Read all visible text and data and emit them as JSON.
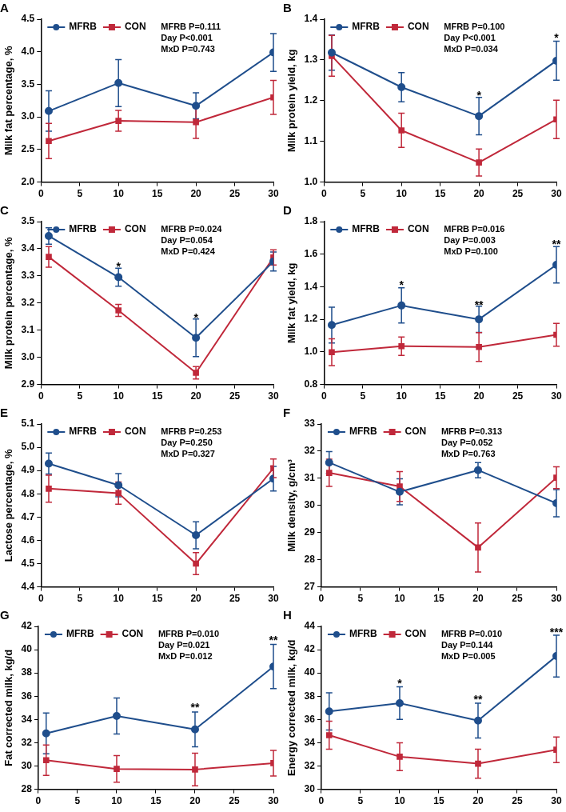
{
  "chart_data": [
    {
      "type": "line",
      "title": "A",
      "ylabel": "Milk fat percentage, %",
      "x": [
        1,
        10,
        20,
        30
      ],
      "xlim": [
        0,
        30
      ],
      "xticks": [
        0,
        5,
        10,
        15,
        20,
        25,
        30
      ],
      "ylim": [
        2,
        4.5
      ],
      "yticks": [
        {
          "value": 2,
          "label": "2.0"
        },
        2.5,
        {
          "value": 3,
          "label": "3.0"
        },
        3.5,
        {
          "value": 4,
          "label": "4.0"
        },
        4.5
      ],
      "grid": false,
      "legend": "top left",
      "line_style": "solid",
      "series": [
        {
          "name": "MFRB",
          "color": "#1f4e8c",
          "marker": "circle",
          "values": [
            3.09,
            3.52,
            3.17,
            3.99
          ],
          "errors": [
            0.31,
            0.36,
            0.2,
            0.29
          ]
        },
        {
          "name": "CON",
          "color": "#c0283a",
          "marker": "square",
          "values": [
            2.63,
            2.94,
            2.92,
            3.3
          ],
          "errors": [
            0.27,
            0.16,
            0.25,
            0.26
          ]
        }
      ],
      "annotations": [
        "MFRB P=0.111",
        "Day P<0.001",
        "MxD P=0.743"
      ]
    },
    {
      "type": "line",
      "title": "B",
      "ylabel": "Milk protein yield, kg",
      "x": [
        1,
        10,
        20,
        30
      ],
      "xlim": [
        0,
        30
      ],
      "xticks": [
        0,
        5,
        10,
        15,
        20,
        25,
        30
      ],
      "ylim": [
        1.0,
        1.4
      ],
      "yticks": [
        {
          "value": 1,
          "label": "1.0"
        },
        1.1,
        1.2,
        1.3,
        1.4
      ],
      "grid": false,
      "legend": "top left",
      "line_style": "solid",
      "series": [
        {
          "name": "MFRB",
          "color": "#1f4e8c",
          "marker": "circle",
          "values": [
            1.318,
            1.233,
            1.162,
            1.298
          ],
          "errors": [
            0.043,
            0.036,
            0.046,
            0.048
          ]
        },
        {
          "name": "CON",
          "color": "#c0283a",
          "marker": "square",
          "values": [
            1.31,
            1.127,
            1.048,
            1.154
          ],
          "errors": [
            0.05,
            0.042,
            0.033,
            0.047
          ]
        }
      ],
      "annotations": [
        "MFRB P=0.100",
        "Day P<0.001",
        "MxD P=0.034",
        {
          "text": "*",
          "x": 20,
          "y": 1.21
        },
        {
          "text": "*",
          "x": 30,
          "y": 1.35
        }
      ]
    },
    {
      "type": "line",
      "title": "C",
      "ylabel": "Milk protein percentage, %",
      "x": [
        1,
        10,
        20,
        30
      ],
      "xlim": [
        0,
        30
      ],
      "xticks": [
        0,
        5,
        10,
        15,
        20,
        25,
        30
      ],
      "ylim": [
        2.9,
        3.5
      ],
      "yticks": [
        2.9,
        {
          "value": 3,
          "label": "3.0"
        },
        3.1,
        3.2,
        3.3,
        3.4,
        3.5
      ],
      "grid": false,
      "legend": "top left",
      "line_style": "solid",
      "series": [
        {
          "name": "MFRB",
          "color": "#1f4e8c",
          "marker": "circle",
          "values": [
            3.447,
            3.295,
            3.072,
            3.353
          ],
          "errors": [
            0.03,
            0.033,
            0.069,
            0.035
          ]
        },
        {
          "name": "CON",
          "color": "#c0283a",
          "marker": "square",
          "values": [
            3.37,
            3.173,
            2.943,
            3.368
          ],
          "errors": [
            0.038,
            0.022,
            0.023,
            0.028
          ]
        }
      ],
      "annotations": [
        "MFRB P=0.024",
        "Day P=0.054",
        "MxD P=0.424",
        {
          "text": "*",
          "x": 10,
          "y": 3.33
        },
        {
          "text": "*",
          "x": 20,
          "y": 3.14
        }
      ]
    },
    {
      "type": "line",
      "title": "D",
      "ylabel": "Milk fat yield, kg",
      "x": [
        1,
        10,
        20,
        30
      ],
      "xlim": [
        0,
        30
      ],
      "xticks": [
        0,
        5,
        10,
        15,
        20,
        25,
        30
      ],
      "ylim": [
        0.8,
        1.8
      ],
      "yticks": [
        0.8,
        {
          "value": 1,
          "label": "1.0"
        },
        1.2,
        1.4,
        1.6,
        1.8
      ],
      "grid": false,
      "legend": "top left",
      "line_style": "solid",
      "series": [
        {
          "name": "MFRB",
          "color": "#1f4e8c",
          "marker": "circle",
          "values": [
            1.165,
            1.285,
            1.2,
            1.535
          ],
          "errors": [
            0.11,
            0.108,
            0.08,
            0.112
          ]
        },
        {
          "name": "CON",
          "color": "#c0283a",
          "marker": "square",
          "values": [
            0.998,
            1.035,
            1.03,
            1.105
          ],
          "errors": [
            0.082,
            0.057,
            0.088,
            0.07
          ]
        }
      ],
      "annotations": [
        "MFRB P=0.016",
        "Day P=0.003",
        "MxD P=0.100",
        {
          "text": "*",
          "x": 10,
          "y": 1.4
        },
        {
          "text": "**",
          "x": 20,
          "y": 1.28
        },
        {
          "text": "**",
          "x": 30,
          "y": 1.65
        }
      ]
    },
    {
      "type": "line",
      "title": "E",
      "ylabel": "Lactose percentage, %",
      "x": [
        1,
        10,
        20,
        30
      ],
      "xlim": [
        0,
        30
      ],
      "xticks": [
        0,
        5,
        10,
        15,
        20,
        25,
        30
      ],
      "ylim": [
        4.4,
        5.1
      ],
      "yticks": [
        4.4,
        4.5,
        4.6,
        4.7,
        4.8,
        4.9,
        {
          "value": 5,
          "label": "5.0"
        },
        5.1
      ],
      "grid": false,
      "legend": "top left",
      "line_style": "solid",
      "series": [
        {
          "name": "MFRB",
          "color": "#1f4e8c",
          "marker": "circle",
          "values": [
            4.93,
            4.837,
            4.622,
            4.865
          ],
          "errors": [
            0.045,
            0.05,
            0.058,
            0.053
          ]
        },
        {
          "name": "CON",
          "color": "#c0283a",
          "marker": "square",
          "values": [
            4.822,
            4.803,
            4.5,
            4.91
          ],
          "errors": [
            0.058,
            0.048,
            0.047,
            0.04
          ]
        }
      ],
      "annotations": [
        "MFRB P=0.253",
        "Day P=0.250",
        "MxD P=0.327"
      ]
    },
    {
      "type": "line",
      "title": "F",
      "ylabel": "Milk density, g/cm³",
      "x": [
        1,
        10,
        20,
        30
      ],
      "xlim": [
        0,
        30
      ],
      "xticks": [
        0,
        5,
        10,
        15,
        20,
        25,
        30
      ],
      "ylim": [
        27,
        33
      ],
      "yticks": [
        27,
        28,
        29,
        30,
        31,
        32,
        33
      ],
      "grid": false,
      "legend": "top left",
      "line_style": "solid",
      "series": [
        {
          "name": "MFRB",
          "color": "#1f4e8c",
          "marker": "circle",
          "values": [
            31.58,
            30.5,
            31.3,
            30.08
          ],
          "errors": [
            0.4,
            0.48,
            0.28,
            0.5
          ]
        },
        {
          "name": "CON",
          "color": "#c0283a",
          "marker": "square",
          "values": [
            31.2,
            30.7,
            28.45,
            31.02
          ],
          "errors": [
            0.5,
            0.55,
            0.9,
            0.4
          ]
        }
      ],
      "annotations": [
        "MFRB P=0.313",
        "Day P=0.052",
        "MxD P=0.763"
      ]
    },
    {
      "type": "line",
      "title": "G",
      "ylabel": "Fat corrected milk, kg/d",
      "x": [
        1,
        10,
        20,
        30
      ],
      "xlim": [
        0,
        30
      ],
      "xticks": [
        0,
        5,
        10,
        15,
        20,
        25,
        30
      ],
      "ylim": [
        28,
        42
      ],
      "yticks": [
        28,
        30,
        32,
        34,
        36,
        38,
        40,
        42
      ],
      "grid": false,
      "legend": "top left",
      "line_style": "solid",
      "series": [
        {
          "name": "MFRB",
          "color": "#1f4e8c",
          "marker": "circle",
          "values": [
            32.8,
            34.3,
            33.15,
            38.55
          ],
          "errors": [
            1.75,
            1.55,
            1.5,
            1.9
          ]
        },
        {
          "name": "CON",
          "color": "#c0283a",
          "marker": "square",
          "values": [
            30.5,
            29.75,
            29.7,
            30.25
          ],
          "errors": [
            1.3,
            1.15,
            1.4,
            1.1
          ]
        }
      ],
      "annotations": [
        "MFRB P=0.010",
        "Day P=0.021",
        "MxD P=0.012",
        {
          "text": "**",
          "x": 20,
          "y": 34.9
        },
        {
          "text": "**",
          "x": 30,
          "y": 40.7
        }
      ]
    },
    {
      "type": "line",
      "title": "H",
      "ylabel": "Energy corrected milk, kg/d",
      "x": [
        1,
        10,
        20,
        30
      ],
      "xlim": [
        0,
        30
      ],
      "xticks": [
        0,
        5,
        10,
        15,
        20,
        25,
        30
      ],
      "ylim": [
        30,
        44
      ],
      "yticks": [
        30,
        32,
        34,
        36,
        38,
        40,
        42,
        44
      ],
      "grid": false,
      "legend": "top left",
      "line_style": "solid",
      "series": [
        {
          "name": "MFRB",
          "color": "#1f4e8c",
          "marker": "circle",
          "values": [
            36.7,
            37.4,
            35.9,
            41.45
          ],
          "errors": [
            1.6,
            1.4,
            1.5,
            1.8
          ]
        },
        {
          "name": "CON",
          "color": "#c0283a",
          "marker": "square",
          "values": [
            34.65,
            32.8,
            32.2,
            33.4
          ],
          "errors": [
            1.2,
            1.2,
            1.25,
            1.1
          ]
        }
      ],
      "annotations": [
        "MFRB P=0.010",
        "Day P=0.144",
        "MxD P=0.005",
        {
          "text": "*",
          "x": 10,
          "y": 39.0
        },
        {
          "text": "**",
          "x": 20,
          "y": 37.6
        },
        {
          "text": "***",
          "x": 30,
          "y": 43.4
        }
      ]
    }
  ]
}
